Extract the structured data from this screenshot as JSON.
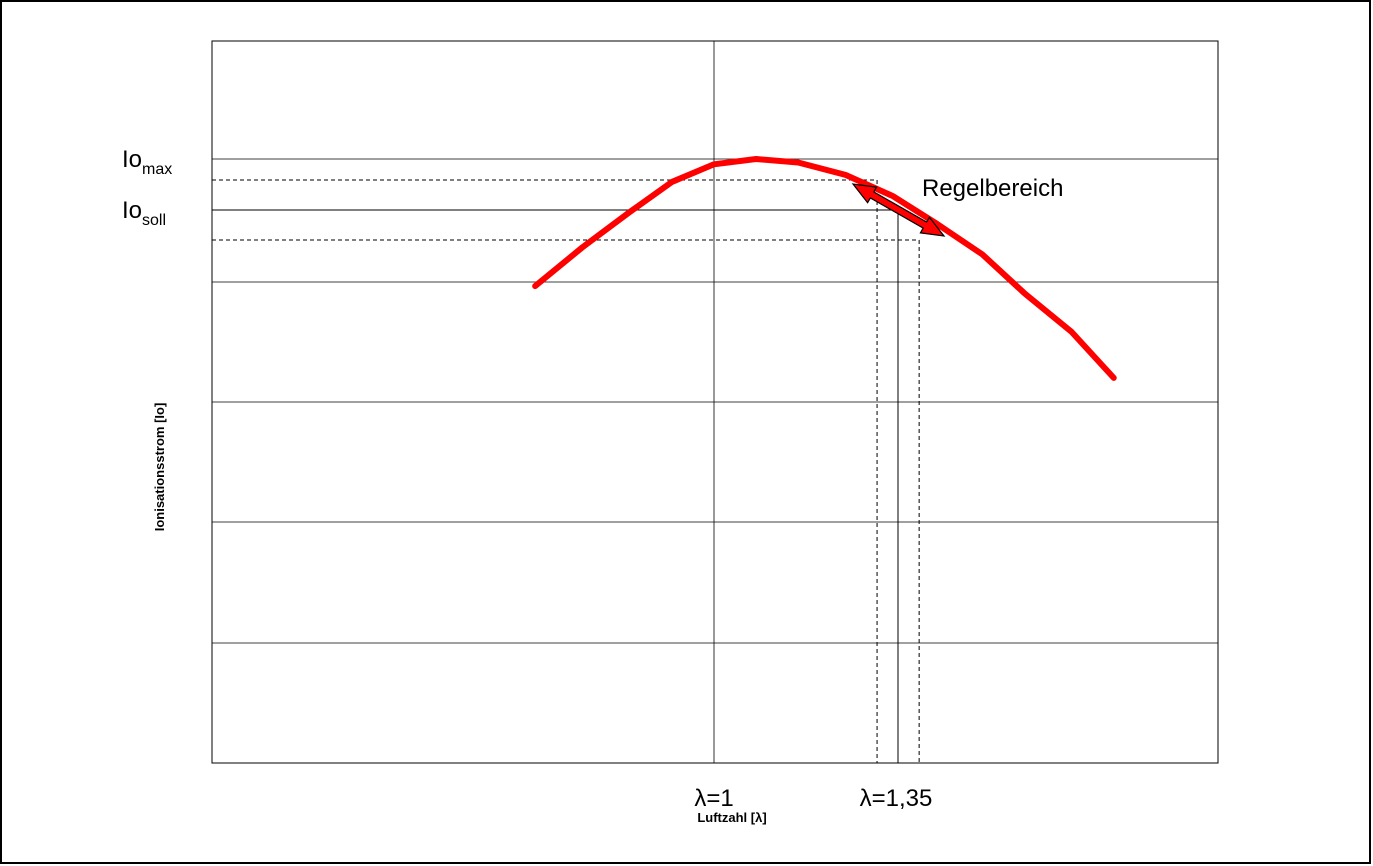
{
  "chart_data": {
    "type": "line",
    "title": "",
    "xlabel": "Luftzahl [λ]",
    "ylabel": "Ionisationsstrom [Io]",
    "grid": true,
    "x_ticks": [
      {
        "label": "λ=1",
        "value": 1.0
      },
      {
        "label": "λ=1,35",
        "value": 1.35
      }
    ],
    "y_markers": [
      {
        "main": "Io",
        "sub": "max",
        "label": "Iomax"
      },
      {
        "main": "Io",
        "sub": "soll",
        "label": "Iosoll"
      }
    ],
    "annotation": "Regelbereich",
    "series": [
      {
        "color": "#ff0000",
        "x": [
          0.66,
          0.75,
          0.84,
          0.92,
          1.0,
          1.08,
          1.16,
          1.25,
          1.34,
          1.42,
          1.51,
          1.59,
          1.68,
          1.76
        ],
        "y": [
          0.64,
          0.75,
          0.85,
          0.935,
          0.985,
          1.0,
          0.99,
          0.955,
          0.895,
          0.82,
          0.73,
          0.62,
          0.51,
          0.38
        ]
      }
    ],
    "regelbereich": {
      "x_start": 1.31,
      "x_end": 1.39
    }
  }
}
